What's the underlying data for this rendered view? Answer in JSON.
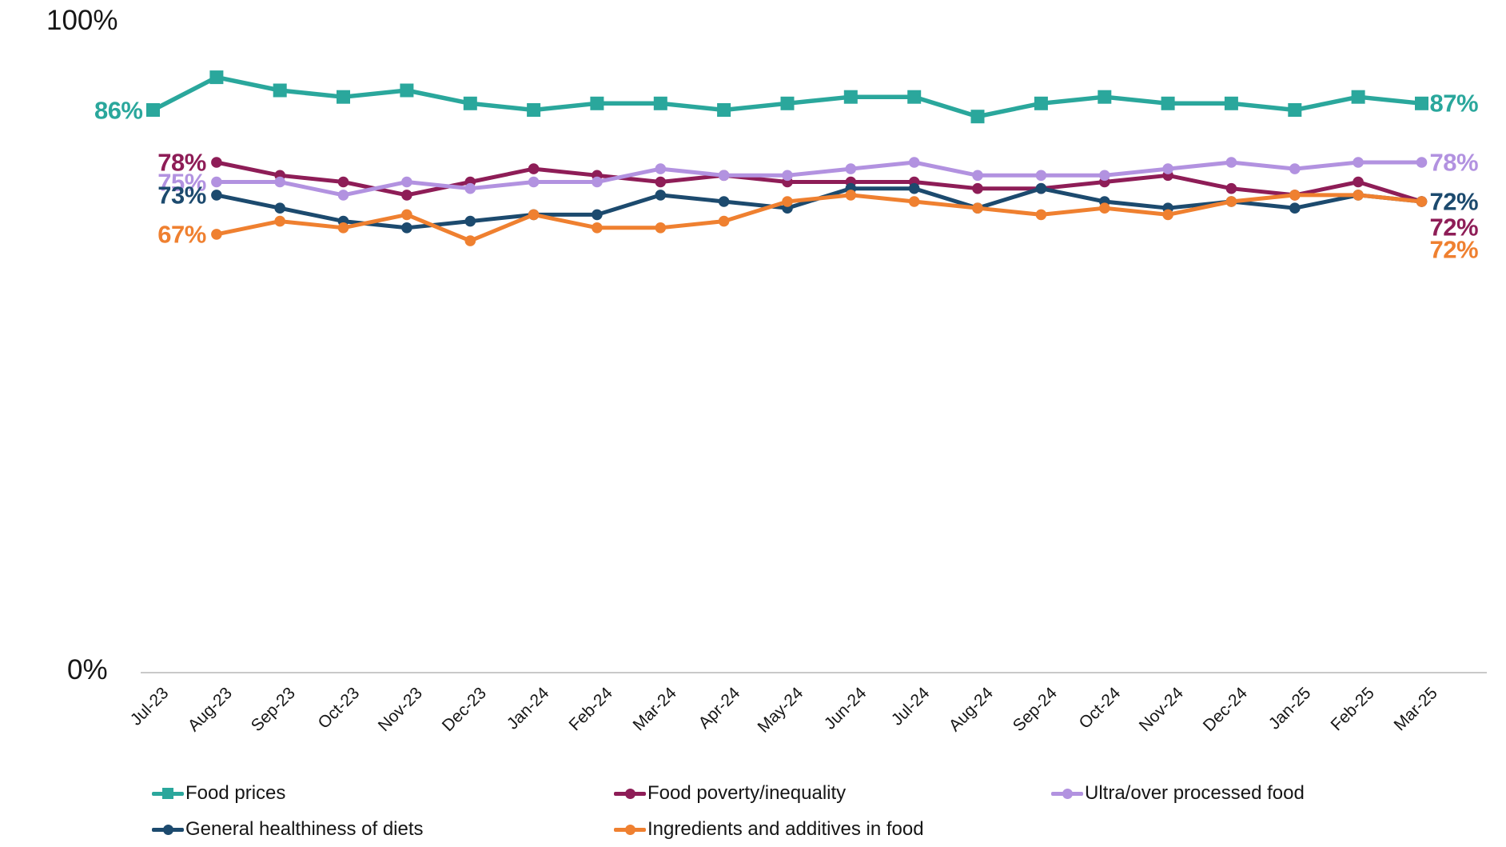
{
  "y_axis": {
    "top_label": "100%",
    "bottom_label": "0%"
  },
  "chart_data": {
    "type": "line",
    "title": "",
    "xlabel": "",
    "ylabel": "",
    "ylim": [
      0,
      100
    ],
    "grid": false,
    "legend_position": "bottom",
    "x_labels": [
      "Jul-23",
      "Aug-23",
      "Sep-23",
      "Oct-23",
      "Nov-23",
      "Dec-23",
      "Jan-24",
      "Feb-24",
      "Mar-24",
      "Apr-24",
      "May-24",
      "Jun-24",
      "Jul-24",
      "Aug-24",
      "Sep-24",
      "Oct-24",
      "Nov-24",
      "Dec-24",
      "Jan-25",
      "Feb-25",
      "Mar-25"
    ],
    "series": [
      {
        "name": "Food prices",
        "color": "#2aa79c",
        "marker": "square",
        "start_month_index": 0,
        "start_label": "86%",
        "end_label": "87%",
        "values": [
          86,
          91,
          89,
          88,
          89,
          87,
          86,
          87,
          87,
          86,
          87,
          88,
          88,
          85,
          87,
          88,
          87,
          87,
          86,
          88,
          87
        ]
      },
      {
        "name": "Food poverty/inequality",
        "color": "#8e1d57",
        "marker": "circle",
        "start_month_index": 1,
        "start_label": "78%",
        "end_label": "72%",
        "values": [
          78,
          76,
          75,
          73,
          75,
          77,
          76,
          75,
          76,
          75,
          75,
          75,
          74,
          74,
          75,
          76,
          74,
          73,
          75,
          72
        ]
      },
      {
        "name": "Ultra/over processed food",
        "color": "#b292e0",
        "marker": "circle",
        "start_month_index": 1,
        "start_label": "75%",
        "end_label": "78%",
        "values": [
          75,
          75,
          73,
          75,
          74,
          75,
          75,
          77,
          76,
          76,
          77,
          78,
          76,
          76,
          76,
          77,
          78,
          77,
          78,
          78
        ]
      },
      {
        "name": "General healthiness of diets",
        "color": "#1c4a6e",
        "marker": "circle",
        "start_month_index": 1,
        "start_label": "73%",
        "end_label": "72%",
        "values": [
          73,
          71,
          69,
          68,
          69,
          70,
          70,
          73,
          72,
          71,
          74,
          74,
          71,
          74,
          72,
          71,
          72,
          71,
          73,
          72
        ]
      },
      {
        "name": "Ingredients and additives in food",
        "color": "#ef8030",
        "marker": "circle",
        "start_month_index": 1,
        "start_label": "67%",
        "end_label": "72%",
        "values": [
          67,
          69,
          68,
          70,
          66,
          70,
          68,
          68,
          69,
          72,
          73,
          72,
          71,
          70,
          71,
          70,
          72,
          73,
          73,
          72
        ]
      }
    ]
  }
}
